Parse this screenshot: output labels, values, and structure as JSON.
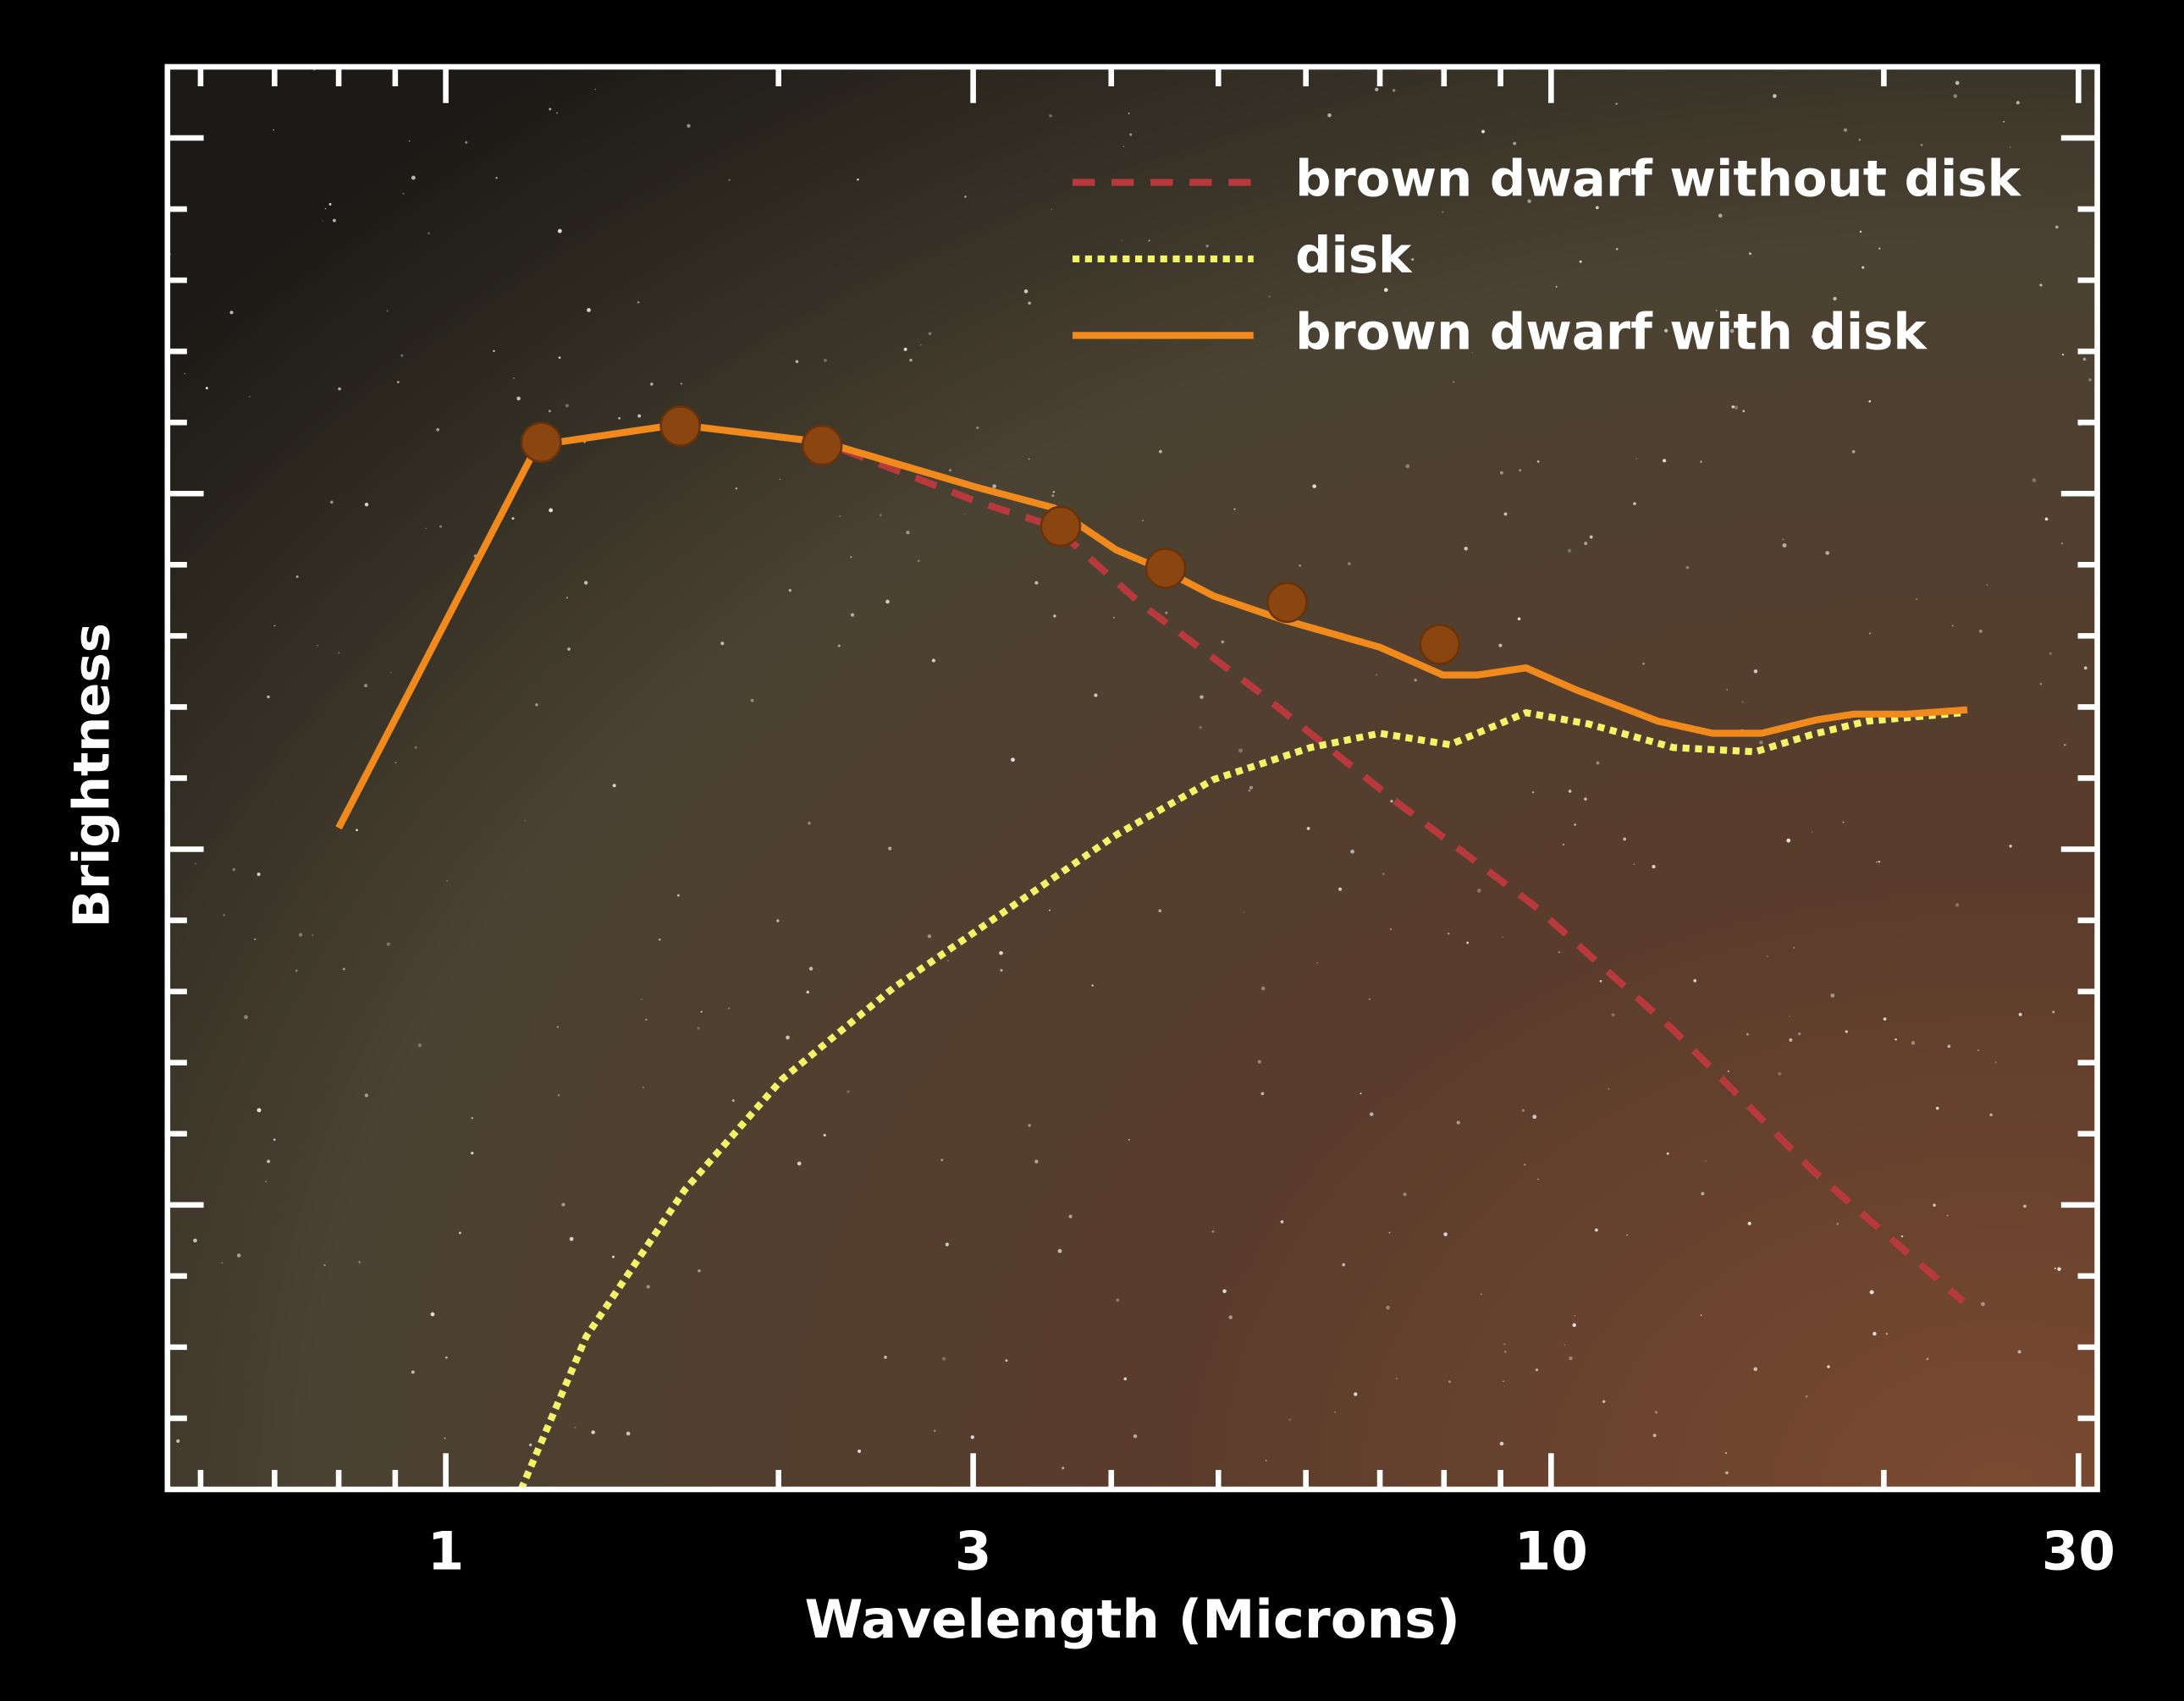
{
  "chart_data": {
    "type": "line",
    "x_label": "Wavelength (Microns)",
    "y_label": "Brightness",
    "xscale": "log",
    "xlim": [
      0.56,
      31.2
    ],
    "xticks": [
      1,
      3,
      10,
      30
    ],
    "xticks_minor": [
      0.6,
      0.7,
      0.8,
      0.9,
      2,
      4,
      5,
      6,
      7,
      8,
      9,
      20
    ],
    "ylim": [
      0,
      20
    ],
    "yticks": [
      4,
      9,
      14,
      19
    ],
    "yticks_minor": [
      1,
      2,
      3,
      5,
      6,
      7,
      8,
      10,
      11,
      12,
      13,
      15,
      16,
      17,
      18
    ],
    "legend": "upper right",
    "series": [
      {
        "name": "brown dwarf without disk",
        "color": "#b8393c",
        "style": "dashed",
        "x": [
          0.8,
          1.21,
          1.62,
          2.2,
          3.02,
          3.55,
          4.27,
          5.4,
          7.21,
          9.63,
          12.9,
          17.2,
          23.6
        ],
        "values": [
          9.3,
          14.68,
          14.97,
          14.72,
          13.89,
          13.54,
          12.43,
          11.25,
          9.69,
          8.22,
          6.46,
          4.5,
          2.64
        ]
      },
      {
        "name": "disk",
        "color": "#f3f36a",
        "style": "dotted",
        "x": [
          1.17,
          1.34,
          1.645,
          2.016,
          2.54,
          3.2,
          4.04,
          4.95,
          6.06,
          7.0,
          8.1,
          9.49,
          10.82,
          12.9,
          15.3,
          17.2,
          19.3,
          23.6
        ],
        "values": [
          0,
          2.15,
          4.21,
          5.77,
          7.05,
          8.12,
          9.2,
          9.98,
          10.43,
          10.63,
          10.47,
          10.92,
          10.76,
          10.43,
          10.37,
          10.61,
          10.8,
          10.92
        ]
      },
      {
        "name": "brown dwarf with disk",
        "color": "#f08a1c",
        "style": "solid",
        "x": [
          0.8,
          1.21,
          1.62,
          2.2,
          3.02,
          3.55,
          4.04,
          4.47,
          4.95,
          5.71,
          7.0,
          7.98,
          8.58,
          9.49,
          10.5,
          12.5,
          14.0,
          15.5,
          17.4,
          18.8,
          21.0,
          23.8
        ],
        "values": [
          9.3,
          14.68,
          14.97,
          14.72,
          14.09,
          13.8,
          13.21,
          12.92,
          12.56,
          12.23,
          11.84,
          11.45,
          11.45,
          11.55,
          11.25,
          10.8,
          10.63,
          10.63,
          10.82,
          10.9,
          10.9,
          10.96
        ]
      }
    ],
    "markers": {
      "color": "#8a4510",
      "x": [
        1.22,
        1.63,
        2.19,
        3.6,
        4.48,
        5.77,
        7.93
      ],
      "values": [
        14.72,
        14.95,
        14.68,
        13.54,
        12.95,
        12.47,
        11.88
      ]
    }
  }
}
